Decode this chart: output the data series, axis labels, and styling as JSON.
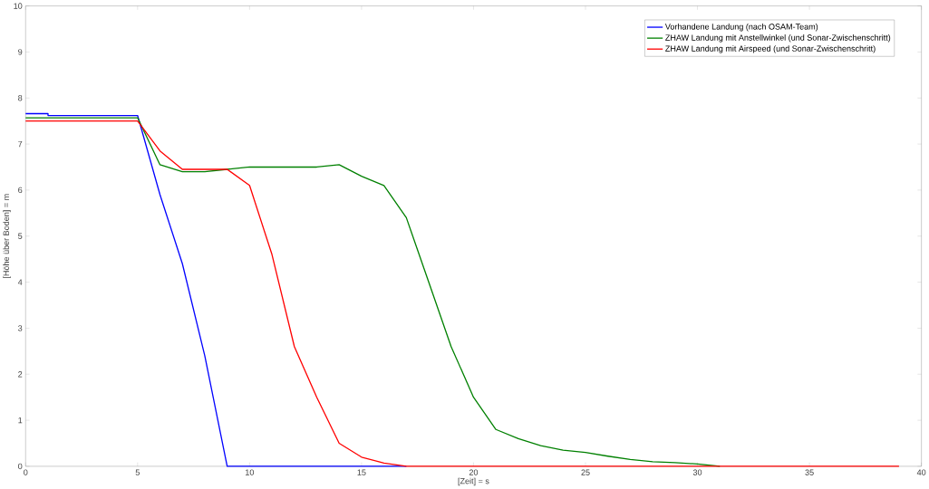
{
  "chart_data": {
    "type": "line",
    "xlabel": "[Zeit] = s",
    "ylabel": "[Höhe über Boden] = m",
    "xlim": [
      0,
      40
    ],
    "ylim": [
      0,
      10
    ],
    "xticks": [
      0,
      5,
      10,
      15,
      20,
      25,
      30,
      35,
      40
    ],
    "yticks": [
      0,
      1,
      2,
      3,
      4,
      5,
      6,
      7,
      8,
      9,
      10
    ],
    "grid": false,
    "legend": "top right",
    "line_style": "solid",
    "marker": "none",
    "series": [
      {
        "name": "Vorhandene Landung (nach OSAM-Team)",
        "color": "#0000ff",
        "x": [
          0,
          1,
          1,
          5,
          6,
          7,
          8,
          9,
          17
        ],
        "values": [
          7.66,
          7.66,
          7.62,
          7.62,
          5.9,
          4.4,
          2.4,
          0,
          0
        ]
      },
      {
        "name": "ZHAW Landung mit Anstellwinkel (und Sonar-Zwischenschritt)",
        "color": "#008000",
        "x": [
          0,
          5,
          6,
          7,
          8,
          9,
          10,
          11,
          12,
          13,
          14,
          15,
          16,
          17,
          18,
          19,
          20,
          21,
          22,
          23,
          24,
          25,
          26,
          27,
          28,
          29,
          30,
          31
        ],
        "values": [
          7.57,
          7.57,
          6.55,
          6.4,
          6.4,
          6.45,
          6.5,
          6.5,
          6.5,
          6.5,
          6.55,
          6.3,
          6.1,
          5.4,
          4.0,
          2.6,
          1.5,
          0.8,
          0.6,
          0.45,
          0.35,
          0.3,
          0.22,
          0.15,
          0.1,
          0.08,
          0.05,
          0
        ]
      },
      {
        "name": "ZHAW Landung mit Airspeed (und Sonar-Zwischenschritt)",
        "color": "#ff0000",
        "x": [
          0,
          5,
          6,
          7,
          8,
          9,
          10,
          11,
          12,
          13,
          14,
          15,
          16,
          17,
          39
        ],
        "values": [
          7.5,
          7.5,
          6.85,
          6.45,
          6.45,
          6.45,
          6.1,
          4.6,
          2.6,
          1.5,
          0.5,
          0.2,
          0.07,
          0,
          0
        ]
      }
    ]
  }
}
